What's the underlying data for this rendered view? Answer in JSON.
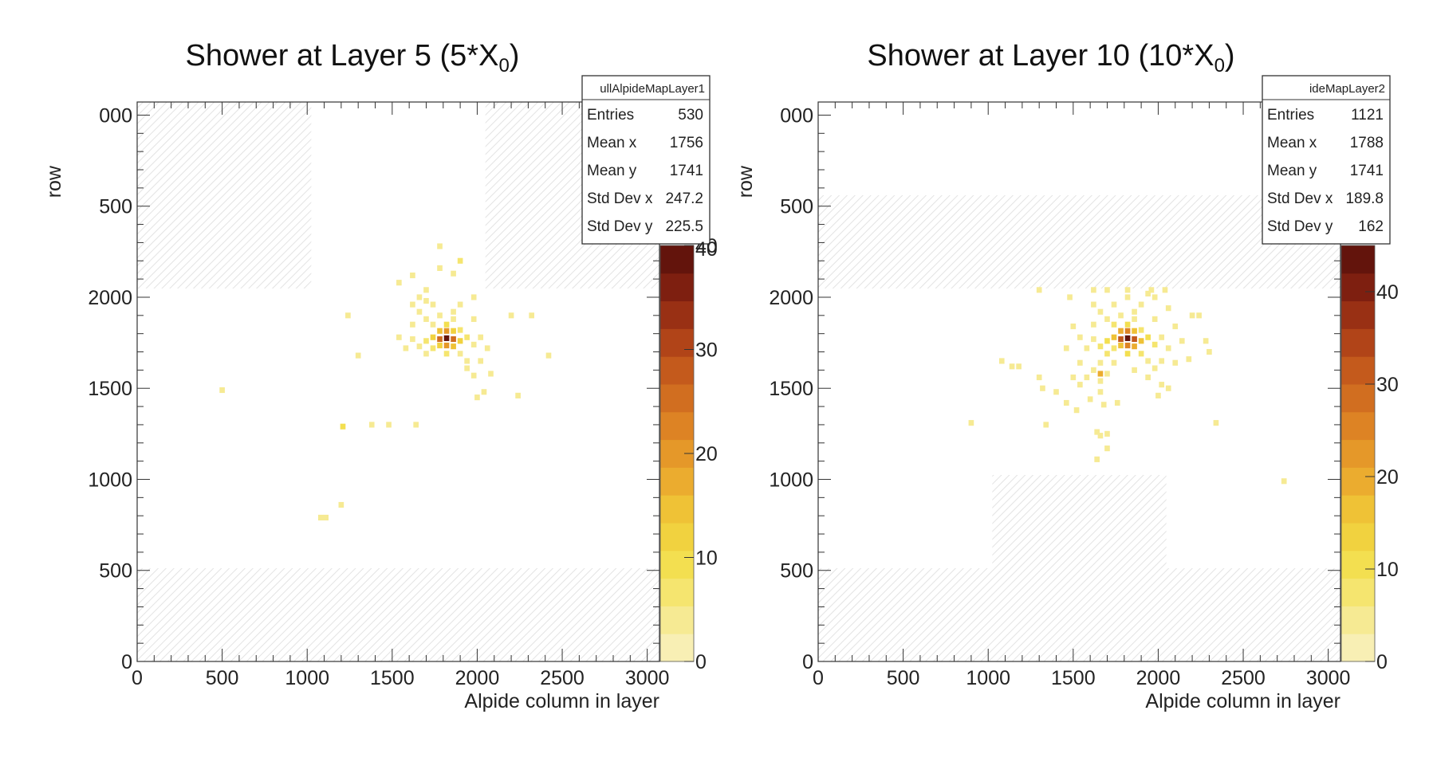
{
  "chart_data": [
    {
      "type": "heatmap",
      "title_main": "Shower at Layer 5 (5*X",
      "title_sub": "0",
      "title_tail": ")",
      "xlabel": "Alpide column in layer",
      "ylabel": "row",
      "xlim": [
        0,
        3072
      ],
      "ylim": [
        0,
        3072
      ],
      "x_ticks": [
        0,
        500,
        1000,
        1500,
        2000,
        2500,
        3000
      ],
      "y_ticks": [
        0,
        500,
        1000,
        1500,
        2000
      ],
      "y_partial_ticks": [
        {
          "value": 3000,
          "label": "000"
        },
        {
          "value": 2500,
          "label": "500"
        }
      ],
      "zlim": [
        0,
        40
      ],
      "z_ticks": [
        0,
        10,
        20,
        30,
        40
      ],
      "z_partial_top": "40",
      "hatched_regions": [
        {
          "x": [
            0,
            1024
          ],
          "y": [
            2048,
            3072
          ]
        },
        {
          "x": [
            2048,
            3072
          ],
          "y": [
            2048,
            3072
          ]
        },
        {
          "x": [
            0,
            3072
          ],
          "y": [
            0,
            512
          ]
        }
      ],
      "stats": {
        "name": "ullAlpideMapLayer1",
        "rows": [
          {
            "label": "Entries",
            "value": "530"
          },
          {
            "label": "Mean x",
            "value": "1756"
          },
          {
            "label": "Mean y",
            "value": "1741"
          },
          {
            "label": "Std Dev x",
            "value": "247.2"
          },
          {
            "label": "Std Dev y",
            "value": "225.5"
          }
        ]
      },
      "points": [
        [
          1820,
          1775,
          40
        ],
        [
          1780,
          1770,
          25
        ],
        [
          1860,
          1770,
          25
        ],
        [
          1820,
          1735,
          20
        ],
        [
          1820,
          1815,
          20
        ],
        [
          1740,
          1780,
          12
        ],
        [
          1900,
          1760,
          12
        ],
        [
          1780,
          1815,
          14
        ],
        [
          1860,
          1730,
          14
        ],
        [
          1780,
          1735,
          12
        ],
        [
          1860,
          1815,
          12
        ],
        [
          1700,
          1760,
          7
        ],
        [
          1940,
          1780,
          7
        ],
        [
          1820,
          1850,
          8
        ],
        [
          1820,
          1690,
          7
        ],
        [
          1740,
          1720,
          6
        ],
        [
          1900,
          1820,
          6
        ],
        [
          1660,
          1730,
          4
        ],
        [
          1980,
          1740,
          4
        ],
        [
          1740,
          1850,
          5
        ],
        [
          1900,
          1690,
          5
        ],
        [
          1620,
          1770,
          3
        ],
        [
          2020,
          1780,
          3
        ],
        [
          1700,
          1690,
          4
        ],
        [
          1940,
          1650,
          4
        ],
        [
          1860,
          1880,
          4
        ],
        [
          1780,
          1900,
          3
        ],
        [
          1860,
          1920,
          3
        ],
        [
          1980,
          1880,
          3
        ],
        [
          1700,
          1880,
          3
        ],
        [
          1620,
          1850,
          3
        ],
        [
          2060,
          1720,
          3
        ],
        [
          1580,
          1720,
          3
        ],
        [
          1540,
          1780,
          3
        ],
        [
          1940,
          1610,
          3
        ],
        [
          1980,
          1570,
          3
        ],
        [
          2020,
          1650,
          3
        ],
        [
          1900,
          1960,
          3
        ],
        [
          1980,
          2000,
          3
        ],
        [
          1740,
          1960,
          3
        ],
        [
          1660,
          1920,
          3
        ],
        [
          1620,
          1960,
          3
        ],
        [
          1700,
          2040,
          3
        ],
        [
          1540,
          2080,
          3
        ],
        [
          1780,
          2280,
          5
        ],
        [
          1900,
          2200,
          6
        ],
        [
          1780,
          2160,
          3
        ],
        [
          1860,
          2130,
          3
        ],
        [
          1660,
          2000,
          3
        ],
        [
          1620,
          2120,
          3
        ],
        [
          1700,
          1980,
          3
        ],
        [
          1240,
          1900,
          3
        ],
        [
          2200,
          1900,
          4
        ],
        [
          2320,
          1900,
          3
        ],
        [
          1300,
          1680,
          3
        ],
        [
          2420,
          1680,
          3
        ],
        [
          2240,
          1460,
          3
        ],
        [
          2080,
          1580,
          3
        ],
        [
          2000,
          1450,
          3
        ],
        [
          2040,
          1480,
          3
        ],
        [
          1210,
          1290,
          8
        ],
        [
          1380,
          1300,
          3
        ],
        [
          1480,
          1300,
          3
        ],
        [
          1640,
          1300,
          3
        ],
        [
          500,
          1490,
          3
        ],
        [
          1200,
          860,
          3
        ],
        [
          1080,
          790,
          4
        ],
        [
          1110,
          790,
          4
        ]
      ]
    },
    {
      "type": "heatmap",
      "title_main": "Shower at Layer 10 (10*X",
      "title_sub": "0",
      "title_tail": ")",
      "xlabel": "Alpide column in layer",
      "ylabel": "row",
      "xlim": [
        0,
        3072
      ],
      "ylim": [
        0,
        3072
      ],
      "x_ticks": [
        0,
        500,
        1000,
        1500,
        2000,
        2500,
        3000
      ],
      "y_ticks": [
        0,
        500,
        1000,
        1500,
        2000
      ],
      "y_partial_ticks": [
        {
          "value": 3000,
          "label": "000"
        },
        {
          "value": 2500,
          "label": "500"
        }
      ],
      "zlim": [
        0,
        45
      ],
      "z_ticks": [
        0,
        10,
        20,
        30,
        40
      ],
      "z_partial_top": "",
      "hatched_regions": [
        {
          "x": [
            0,
            3072
          ],
          "y": [
            2048,
            2560
          ]
        },
        {
          "x": [
            1024,
            2048
          ],
          "y": [
            512,
            1024
          ]
        },
        {
          "x": [
            0,
            3072
          ],
          "y": [
            0,
            512
          ]
        }
      ],
      "stats": {
        "name": "ideMapLayer2",
        "rows": [
          {
            "label": "Entries",
            "value": "1121"
          },
          {
            "label": "Mean x",
            "value": "1788"
          },
          {
            "label": "Mean y",
            "value": "1741"
          },
          {
            "label": "Std Dev x",
            "value": "189.8"
          },
          {
            "label": "Std Dev y",
            "value": "162"
          }
        ]
      },
      "points": [
        [
          1820,
          1775,
          45
        ],
        [
          1780,
          1770,
          30
        ],
        [
          1860,
          1770,
          30
        ],
        [
          1820,
          1735,
          26
        ],
        [
          1820,
          1815,
          26
        ],
        [
          1740,
          1780,
          16
        ],
        [
          1900,
          1760,
          16
        ],
        [
          1780,
          1815,
          18
        ],
        [
          1860,
          1730,
          18
        ],
        [
          1780,
          1735,
          15
        ],
        [
          1860,
          1815,
          15
        ],
        [
          1700,
          1760,
          10
        ],
        [
          1940,
          1780,
          10
        ],
        [
          1820,
          1850,
          10
        ],
        [
          1820,
          1690,
          10
        ],
        [
          1740,
          1720,
          8
        ],
        [
          1900,
          1820,
          8
        ],
        [
          1660,
          1730,
          6
        ],
        [
          1980,
          1740,
          6
        ],
        [
          1740,
          1850,
          7
        ],
        [
          1900,
          1690,
          7
        ],
        [
          1620,
          1770,
          5
        ],
        [
          2020,
          1780,
          5
        ],
        [
          1700,
          1690,
          6
        ],
        [
          1940,
          1650,
          5
        ],
        [
          1860,
          1880,
          5
        ],
        [
          1780,
          1900,
          5
        ],
        [
          1860,
          1920,
          4
        ],
        [
          1980,
          1880,
          4
        ],
        [
          1700,
          1880,
          4
        ],
        [
          1620,
          1850,
          4
        ],
        [
          2060,
          1720,
          4
        ],
        [
          1580,
          1720,
          4
        ],
        [
          1540,
          1780,
          4
        ],
        [
          1660,
          1640,
          4
        ],
        [
          1980,
          1610,
          4
        ],
        [
          2020,
          1650,
          4
        ],
        [
          1740,
          1640,
          5
        ],
        [
          1900,
          1960,
          4
        ],
        [
          1980,
          2000,
          4
        ],
        [
          1740,
          1960,
          4
        ],
        [
          1660,
          1920,
          4
        ],
        [
          1620,
          1960,
          4
        ],
        [
          1700,
          2040,
          4
        ],
        [
          1820,
          2040,
          4
        ],
        [
          1940,
          2020,
          4
        ],
        [
          2060,
          1940,
          4
        ],
        [
          2100,
          1840,
          4
        ],
        [
          2140,
          1760,
          4
        ],
        [
          1500,
          1840,
          3
        ],
        [
          1460,
          1720,
          3
        ],
        [
          1540,
          1640,
          3
        ],
        [
          1620,
          1600,
          3
        ],
        [
          1580,
          1560,
          3
        ],
        [
          1660,
          1540,
          3
        ],
        [
          1700,
          1580,
          3
        ],
        [
          1500,
          1560,
          4
        ],
        [
          1540,
          1520,
          3
        ],
        [
          1660,
          1480,
          3
        ],
        [
          1860,
          1600,
          5
        ],
        [
          1940,
          1560,
          3
        ],
        [
          2020,
          1520,
          3
        ],
        [
          2100,
          1640,
          3
        ],
        [
          2180,
          1660,
          3
        ],
        [
          1820,
          2000,
          3
        ],
        [
          1300,
          2040,
          3
        ],
        [
          1480,
          2000,
          3
        ],
        [
          1620,
          2040,
          4
        ],
        [
          1960,
          2040,
          3
        ],
        [
          2040,
          2040,
          3
        ],
        [
          2200,
          1900,
          4
        ],
        [
          2240,
          1900,
          3
        ],
        [
          2280,
          1760,
          3
        ],
        [
          2300,
          1700,
          3
        ],
        [
          1660,
          1580,
          20
        ],
        [
          1140,
          1620,
          5
        ],
        [
          1180,
          1620,
          4
        ],
        [
          1080,
          1650,
          3
        ],
        [
          1320,
          1500,
          3
        ],
        [
          1400,
          1480,
          3
        ],
        [
          1460,
          1420,
          3
        ],
        [
          1600,
          1440,
          3
        ],
        [
          1680,
          1410,
          3
        ],
        [
          1760,
          1420,
          3
        ],
        [
          1300,
          1560,
          3
        ],
        [
          1340,
          1300,
          3
        ],
        [
          1520,
          1380,
          3
        ],
        [
          1640,
          1260,
          4
        ],
        [
          1660,
          1240,
          5
        ],
        [
          1700,
          1250,
          4
        ],
        [
          1700,
          1170,
          3
        ],
        [
          1640,
          1110,
          3
        ],
        [
          900,
          1310,
          3
        ],
        [
          2340,
          1310,
          3
        ],
        [
          2740,
          990,
          4
        ],
        [
          2000,
          1460,
          3
        ],
        [
          2060,
          1500,
          3
        ]
      ]
    }
  ]
}
